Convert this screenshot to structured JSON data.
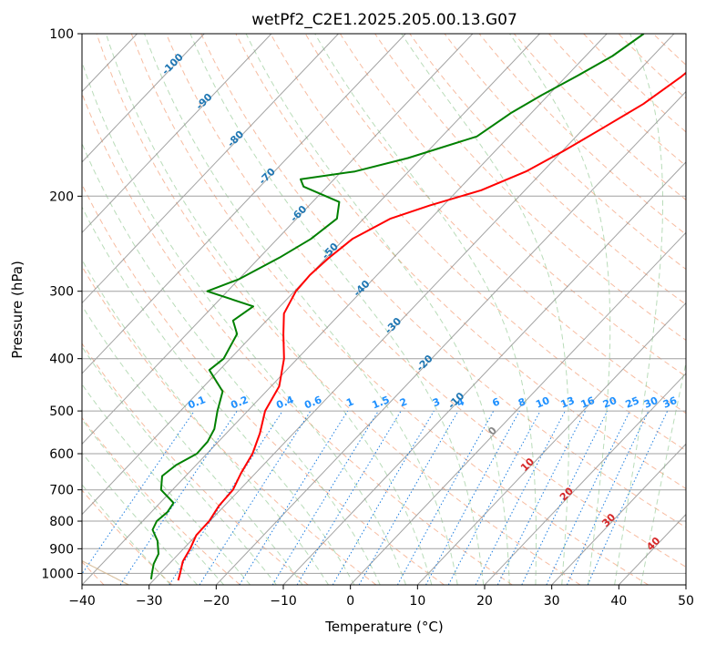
{
  "chart_data": {
    "type": "line",
    "title": "wetPf2_C2E1.2025.205.00.13.G07",
    "xlabel": "Temperature (°C)",
    "ylabel": "Pressure (hPa)",
    "xlim": [
      -40,
      50
    ],
    "ylim": [
      1050,
      100
    ],
    "y_scale": "log",
    "grid": true,
    "x_ticks": [
      "−40",
      "−30",
      "−20",
      "−10",
      "0",
      "10",
      "20",
      "30",
      "40",
      "50"
    ],
    "x_tick_values": [
      -40,
      -30,
      -20,
      -10,
      0,
      10,
      20,
      30,
      40,
      50
    ],
    "y_ticks": [
      "100",
      "200",
      "300",
      "400",
      "500",
      "600",
      "700",
      "800",
      "900",
      "1000"
    ],
    "y_tick_values": [
      100,
      200,
      300,
      400,
      500,
      600,
      700,
      800,
      900,
      1000
    ],
    "dry_adiabat_labels": [
      "-100",
      "-90",
      "-80",
      "-70",
      "-60",
      "-50",
      "-40",
      "-30",
      "-20",
      "-10"
    ],
    "mixing_ratio_labels": [
      "0.1",
      "0.2",
      "0.4",
      "0.6",
      "1",
      "1.5",
      "2",
      "3",
      "4",
      "6",
      "8",
      "10",
      "13",
      "16",
      "20",
      "25",
      "30",
      "36"
    ],
    "mixing_ratio_values": [
      0.1,
      0.2,
      0.4,
      0.6,
      1,
      1.5,
      2,
      3,
      4,
      6,
      8,
      10,
      13,
      16,
      20,
      25,
      30,
      36
    ],
    "moist_adiabat_labels": [
      "0",
      "10",
      "20",
      "30",
      "40"
    ],
    "series": [
      {
        "color": "#ff0000",
        "points": [
          [
            100,
            -20.5
          ],
          [
            110,
            -22.0
          ],
          [
            120,
            -22.8
          ],
          [
            135,
            -24.6
          ],
          [
            150,
            -27.3
          ],
          [
            165,
            -29.8
          ],
          [
            180,
            -32.5
          ],
          [
            195,
            -36.5
          ],
          [
            208,
            -42.0
          ],
          [
            220,
            -46.0
          ],
          [
            240,
            -48.8
          ],
          [
            260,
            -49.6
          ],
          [
            280,
            -50.0
          ],
          [
            300,
            -49.8
          ],
          [
            330,
            -48.4
          ],
          [
            360,
            -45.6
          ],
          [
            400,
            -42.0
          ],
          [
            450,
            -38.8
          ],
          [
            500,
            -37.4
          ],
          [
            550,
            -35.0
          ],
          [
            600,
            -33.2
          ],
          [
            650,
            -32.2
          ],
          [
            700,
            -31.0
          ],
          [
            750,
            -30.8
          ],
          [
            800,
            -30.1
          ],
          [
            850,
            -30.0
          ],
          [
            900,
            -29.0
          ],
          [
            950,
            -28.3
          ],
          [
            1000,
            -27.0
          ],
          [
            1030,
            -26.3
          ]
        ]
      },
      {
        "color": "#008000",
        "points": [
          [
            100,
            -34.5
          ],
          [
            110,
            -36.0
          ],
          [
            120,
            -38.5
          ],
          [
            130,
            -41.0
          ],
          [
            140,
            -43.0
          ],
          [
            155,
            -44.8
          ],
          [
            170,
            -52.0
          ],
          [
            180,
            -58.0
          ],
          [
            186,
            -65.0
          ],
          [
            192,
            -63.5
          ],
          [
            205,
            -56.0
          ],
          [
            220,
            -54.0
          ],
          [
            240,
            -55.0
          ],
          [
            260,
            -57.0
          ],
          [
            285,
            -60.0
          ],
          [
            300,
            -63.0
          ],
          [
            320,
            -54.0
          ],
          [
            340,
            -55.0
          ],
          [
            360,
            -52.5
          ],
          [
            400,
            -51.0
          ],
          [
            420,
            -51.5
          ],
          [
            460,
            -46.5
          ],
          [
            500,
            -44.5
          ],
          [
            540,
            -42.4
          ],
          [
            570,
            -41.6
          ],
          [
            600,
            -41.5
          ],
          [
            630,
            -43.0
          ],
          [
            660,
            -43.5
          ],
          [
            700,
            -41.7
          ],
          [
            740,
            -38.0
          ],
          [
            770,
            -37.6
          ],
          [
            800,
            -37.9
          ],
          [
            830,
            -37.3
          ],
          [
            870,
            -35.0
          ],
          [
            920,
            -33.0
          ],
          [
            960,
            -32.3
          ],
          [
            1000,
            -31.2
          ],
          [
            1025,
            -30.5
          ]
        ]
      }
    ]
  }
}
